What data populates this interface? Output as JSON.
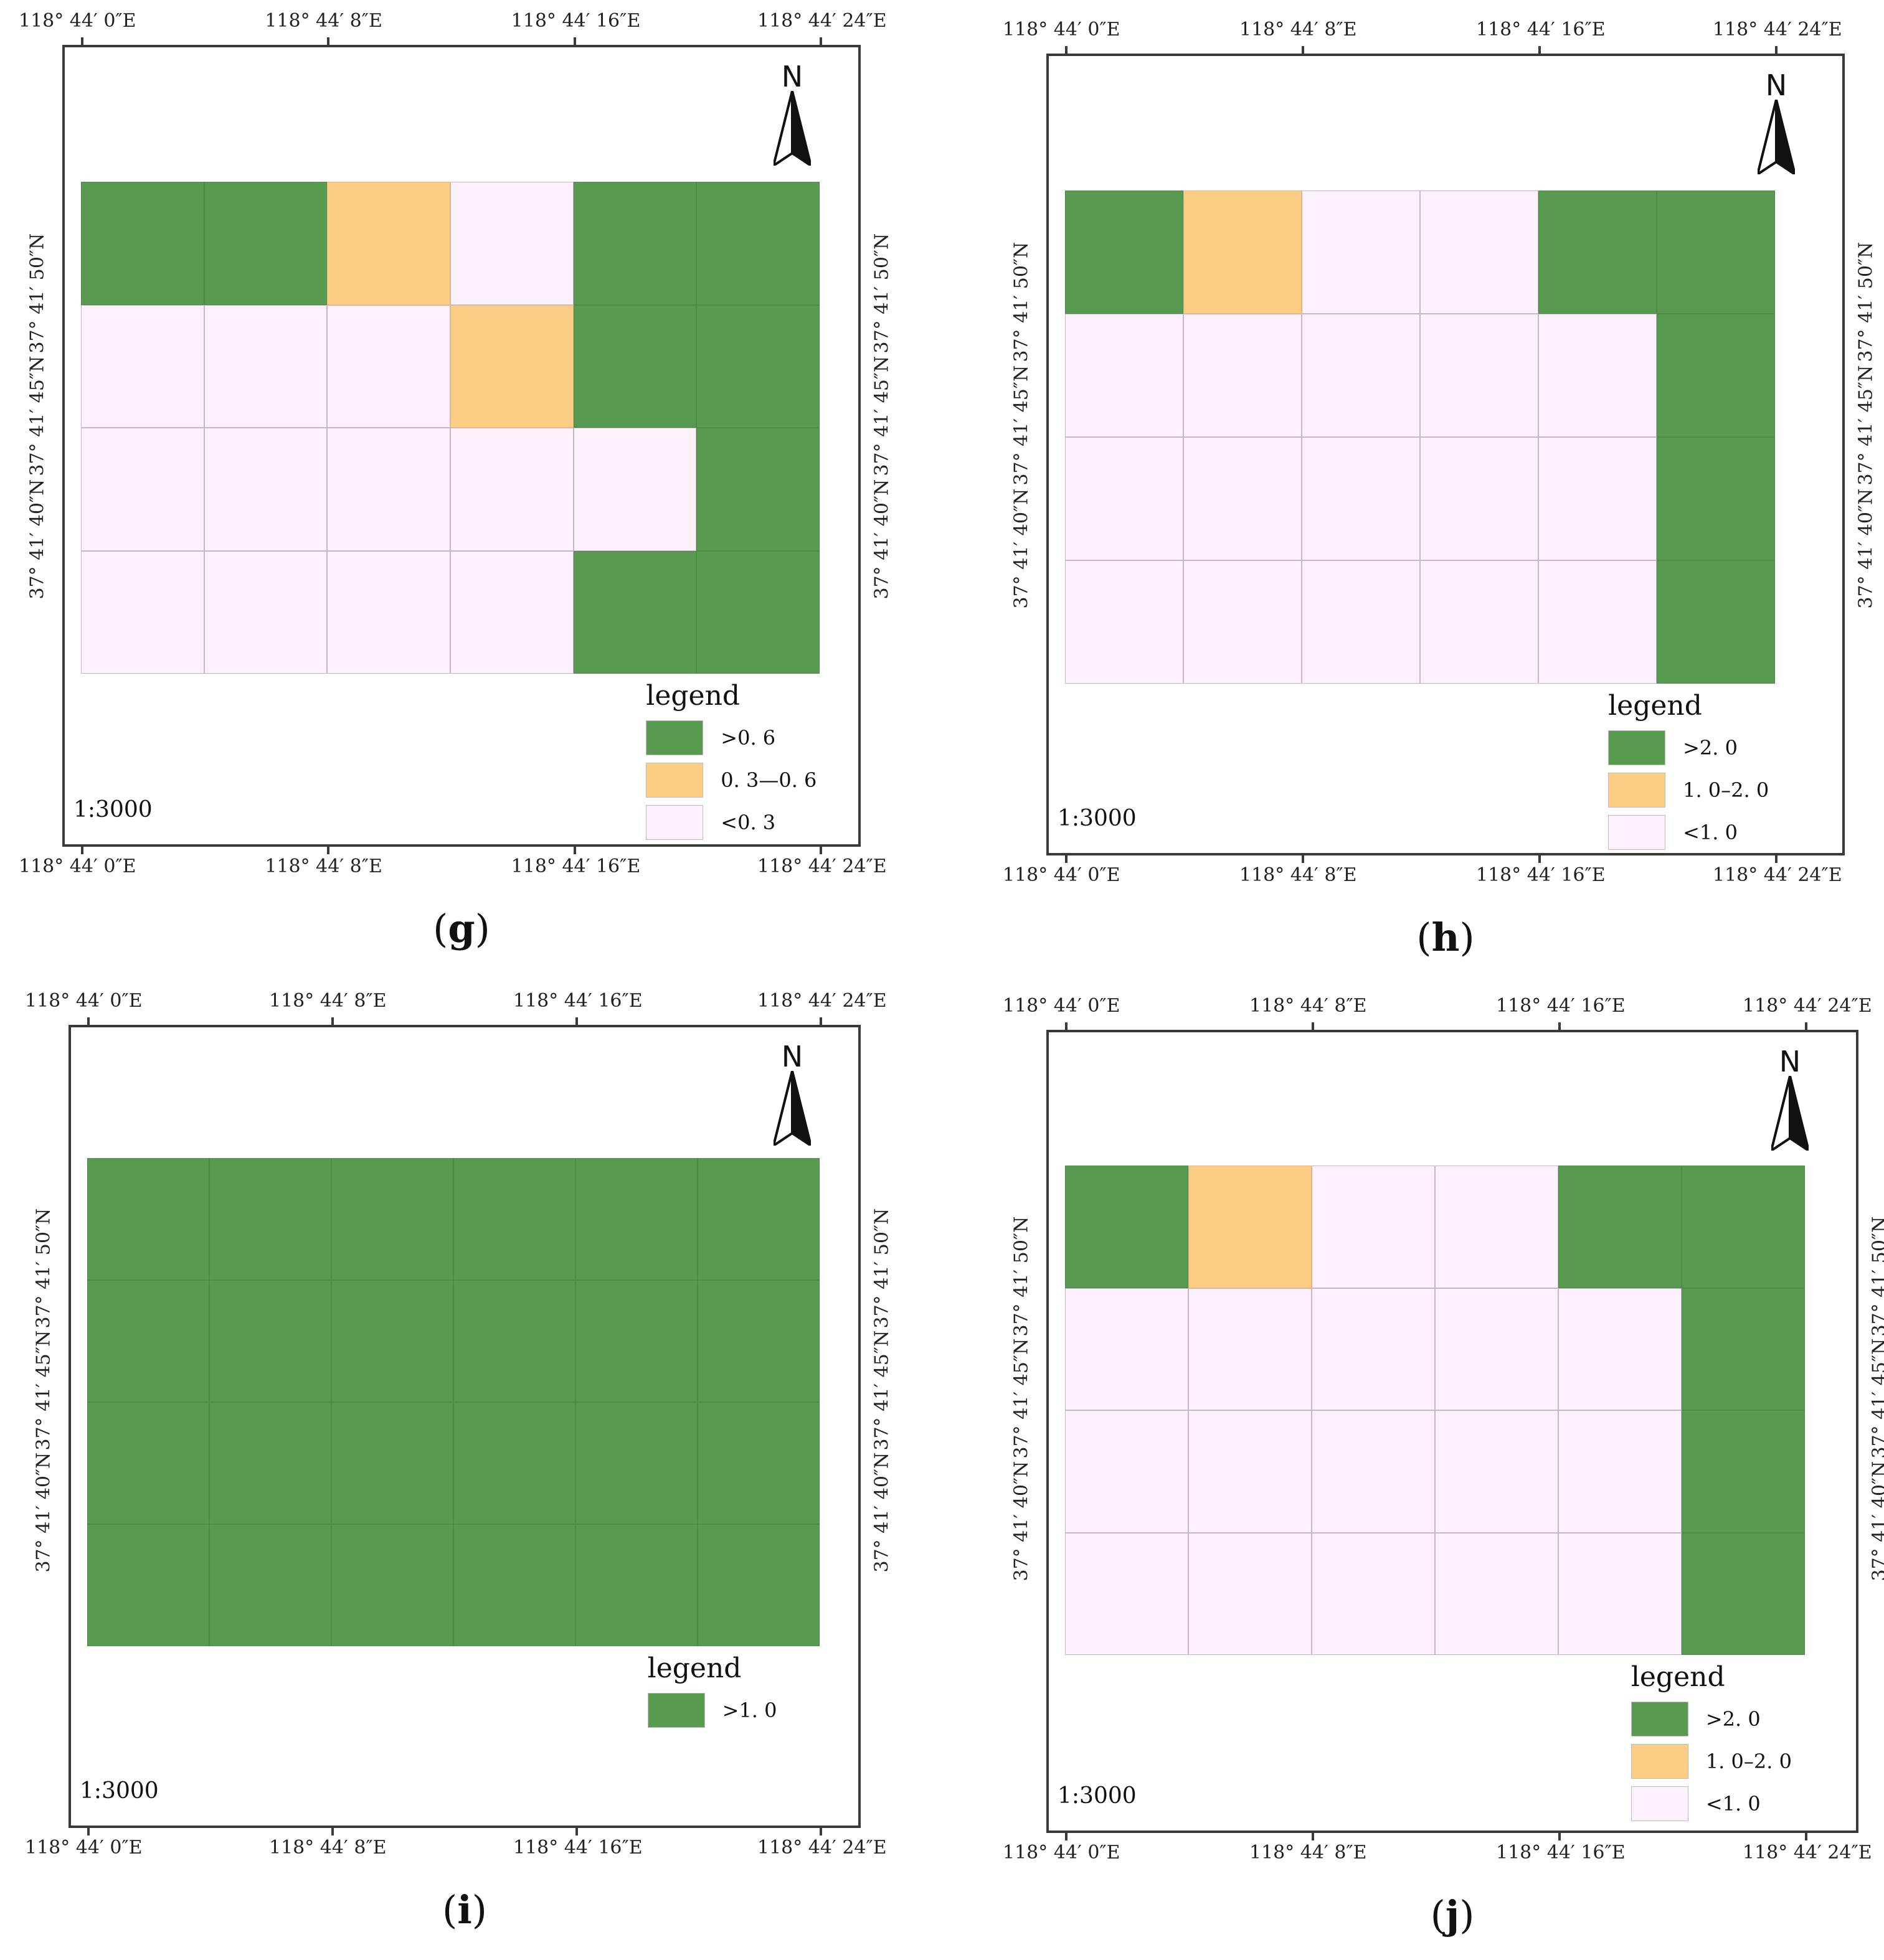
{
  "colors": {
    "high": "#599a51",
    "mid": "#fccd84",
    "low": "#fdf1fd",
    "frame": "#3a3a3a"
  },
  "lon_labels": [
    "118°  44′ 0″E",
    "118°  44′ 8″E",
    "118°  44′ 16″E",
    "118°  44′ 24″E"
  ],
  "lat_labels": [
    "37°  41′ 50″N",
    "37°  41′ 45″N",
    "37°  41′ 40″N"
  ],
  "north_label": "N",
  "legend_title": "legend",
  "scale": "1:3000",
  "panels": [
    {
      "id": "g",
      "caption": "g",
      "cols": 6,
      "grid": [
        [
          "high",
          "high",
          "mid",
          "low",
          "high",
          "high"
        ],
        [
          "low",
          "low",
          "low",
          "mid",
          "high",
          "high"
        ],
        [
          "low",
          "low",
          "low",
          "low",
          "low",
          "high"
        ],
        [
          "low",
          "low",
          "low",
          "low",
          "high",
          "high"
        ]
      ],
      "legend": [
        {
          "class": "high",
          "label": ">0. 6"
        },
        {
          "class": "mid",
          "label": "0. 3—0. 6"
        },
        {
          "class": "low",
          "label": "<0. 3"
        }
      ]
    },
    {
      "id": "h",
      "caption": "h",
      "cols": 6,
      "grid": [
        [
          "high",
          "mid",
          "low",
          "low",
          "high",
          "high"
        ],
        [
          "low",
          "low",
          "low",
          "low",
          "low",
          "high"
        ],
        [
          "low",
          "low",
          "low",
          "low",
          "low",
          "high"
        ],
        [
          "low",
          "low",
          "low",
          "low",
          "low",
          "high"
        ]
      ],
      "legend": [
        {
          "class": "high",
          "label": ">2. 0"
        },
        {
          "class": "mid",
          "label": "1. 0–2. 0"
        },
        {
          "class": "low",
          "label": "<1. 0"
        }
      ]
    },
    {
      "id": "i",
      "caption": "i",
      "cols": 6,
      "grid": [
        [
          "high",
          "high",
          "high",
          "high",
          "high",
          "high"
        ],
        [
          "high",
          "high",
          "high",
          "high",
          "high",
          "high"
        ],
        [
          "high",
          "high",
          "high",
          "high",
          "high",
          "high"
        ],
        [
          "high",
          "high",
          "high",
          "high",
          "high",
          "high"
        ]
      ],
      "legend": [
        {
          "class": "high",
          "label": ">1. 0"
        }
      ]
    },
    {
      "id": "j",
      "caption": "j",
      "cols": 6,
      "grid": [
        [
          "high",
          "mid",
          "low",
          "low",
          "high",
          "high"
        ],
        [
          "low",
          "low",
          "low",
          "low",
          "low",
          "high"
        ],
        [
          "low",
          "low",
          "low",
          "low",
          "low",
          "high"
        ],
        [
          "low",
          "low",
          "low",
          "low",
          "low",
          "high"
        ]
      ],
      "legend": [
        {
          "class": "high",
          "label": ">2. 0"
        },
        {
          "class": "mid",
          "label": "1. 0–2. 0"
        },
        {
          "class": "low",
          "label": "<1. 0"
        }
      ]
    }
  ]
}
